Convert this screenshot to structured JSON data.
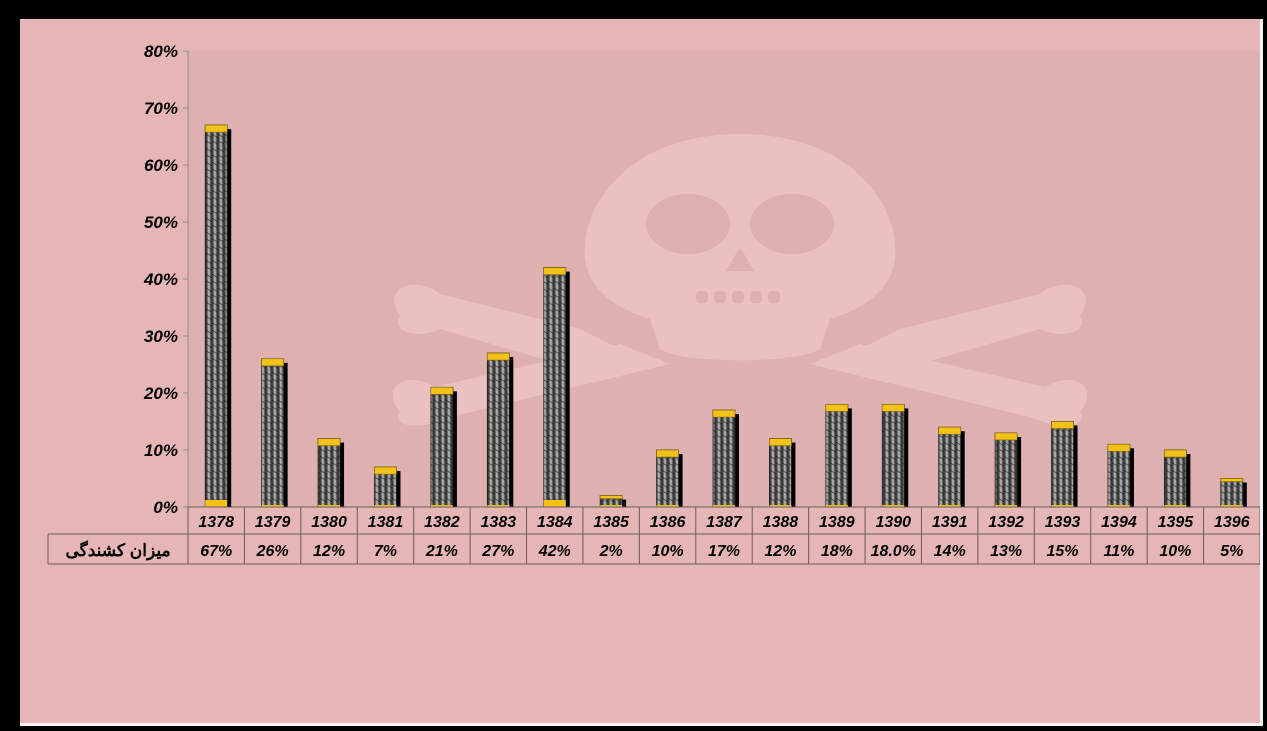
{
  "chart_data": {
    "type": "bar",
    "categories": [
      "1378",
      "1379",
      "1380",
      "1381",
      "1382",
      "1383",
      "1384",
      "1385",
      "1386",
      "1387",
      "1388",
      "1389",
      "1390",
      "1391",
      "1392",
      "1393",
      "1394",
      "1395",
      "1396"
    ],
    "series": [
      {
        "name": "میزان کشندگی",
        "values": [
          67,
          26,
          12,
          7,
          21,
          27,
          42,
          2,
          10,
          17,
          12,
          18,
          18.0,
          14,
          13,
          15,
          11,
          10,
          5
        ],
        "value_labels": [
          "67%",
          "26%",
          "12%",
          "7%",
          "21%",
          "27%",
          "42%",
          "2%",
          "10%",
          "17%",
          "12%",
          "18%",
          "18.0%",
          "14%",
          "13%",
          "15%",
          "11%",
          "10%",
          "5%"
        ]
      }
    ],
    "ylim": [
      0,
      80
    ],
    "yticks": [
      "0%",
      "10%",
      "20%",
      "30%",
      "40%",
      "50%",
      "60%",
      "70%",
      "80%"
    ],
    "title": "",
    "xlabel": "",
    "ylabel": "",
    "grid": false,
    "legend": "data-table-row",
    "data_table": true
  },
  "colors": {
    "background": "#e6b6b6",
    "plot_background": "#dfb0b0",
    "bar_fill": "#4a4a4a",
    "bar_cap": "#f2c21b",
    "bar_shadow": "#000000",
    "watermark": "#ecc3c3"
  },
  "watermark_icon": "skull-and-crossbones-icon"
}
